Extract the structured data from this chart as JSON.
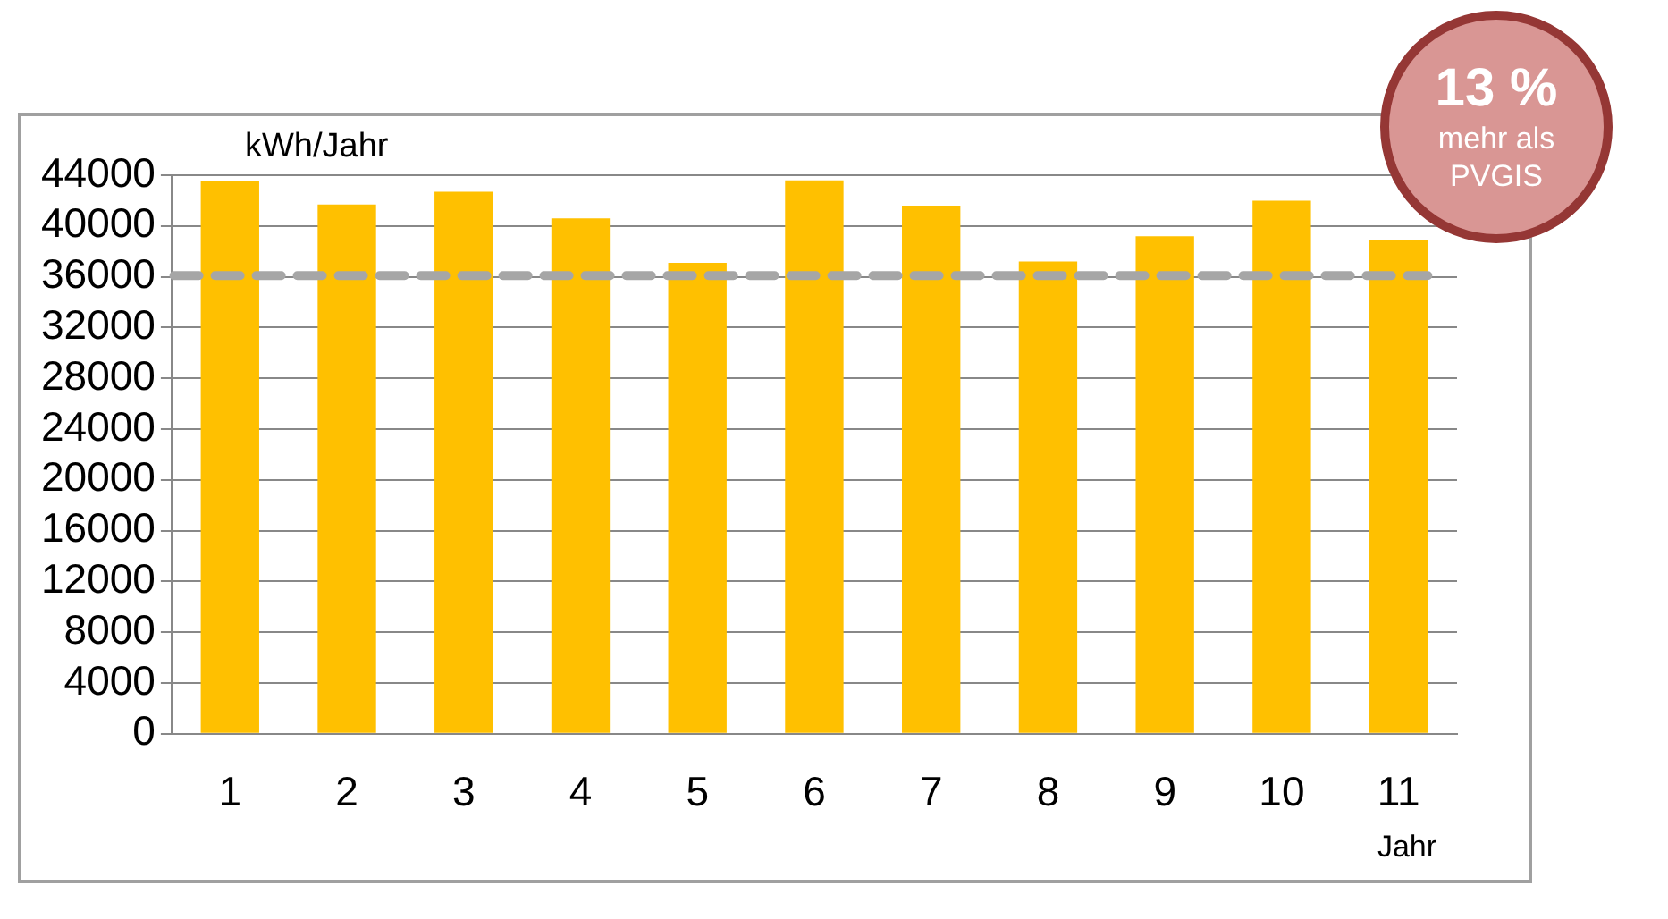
{
  "chart_data": {
    "type": "bar",
    "ylabel": "kWh/Jahr",
    "xlabel": "Jahr",
    "categories": [
      "1",
      "2",
      "3",
      "4",
      "5",
      "6",
      "7",
      "8",
      "9",
      "10",
      "11"
    ],
    "values": [
      43500,
      41700,
      42700,
      40600,
      37100,
      43600,
      41600,
      37200,
      39200,
      42000,
      38900
    ],
    "color": "#ffc000",
    "ylim": [
      0,
      44000
    ],
    "yticks": [
      0,
      4000,
      8000,
      12000,
      16000,
      20000,
      24000,
      28000,
      32000,
      36000,
      40000,
      44000
    ],
    "grid": "y",
    "ref_lines": [
      {
        "axis": "y",
        "value": 36100,
        "color": "#a6a6a6",
        "line_style": "dashed"
      }
    ],
    "annotations": [
      "13 %",
      "mehr als PVGIS"
    ]
  }
}
